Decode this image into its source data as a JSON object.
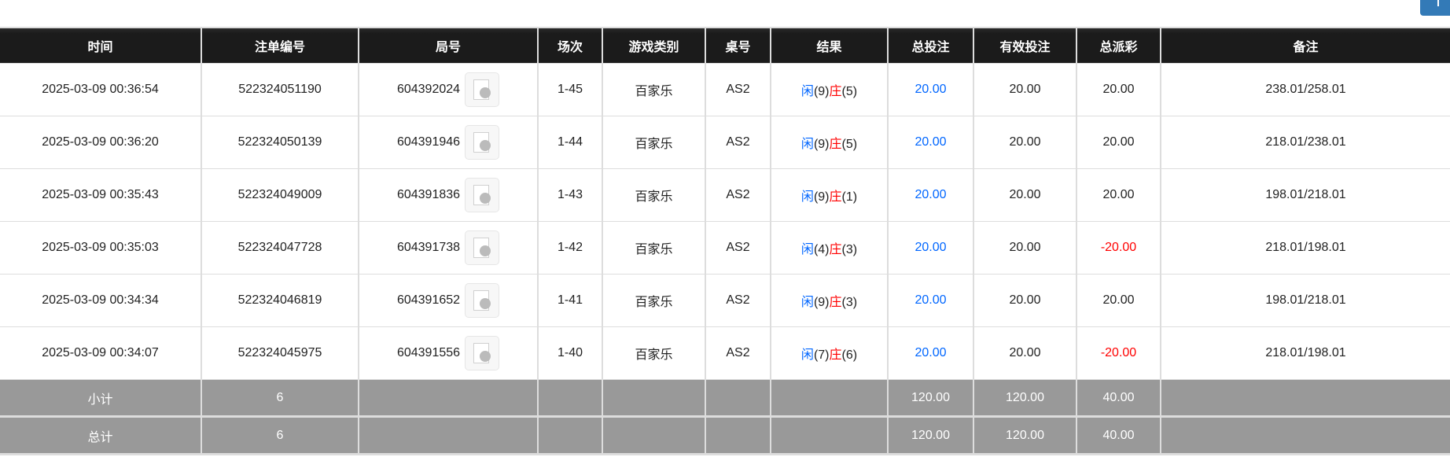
{
  "headers": [
    "时间",
    "注单编号",
    "局号",
    "场次",
    "游戏类别",
    "桌号",
    "结果",
    "总投注",
    "有效投注",
    "总派彩",
    "备注"
  ],
  "rows": [
    {
      "time": "2025-03-09 00:36:54",
      "bet_id": "522324051190",
      "round": "604392024",
      "session": "1-45",
      "game": "百家乐",
      "table": "AS2",
      "player_label": "闲",
      "player_score": "(9)",
      "banker_label": "庄",
      "banker_score": "(5)",
      "total_bet": "20.00",
      "valid_bet": "20.00",
      "payout": "20.00",
      "payout_negative": false,
      "note": "238.01/258.01"
    },
    {
      "time": "2025-03-09 00:36:20",
      "bet_id": "522324050139",
      "round": "604391946",
      "session": "1-44",
      "game": "百家乐",
      "table": "AS2",
      "player_label": "闲",
      "player_score": "(9)",
      "banker_label": "庄",
      "banker_score": "(5)",
      "total_bet": "20.00",
      "valid_bet": "20.00",
      "payout": "20.00",
      "payout_negative": false,
      "note": "218.01/238.01"
    },
    {
      "time": "2025-03-09 00:35:43",
      "bet_id": "522324049009",
      "round": "604391836",
      "session": "1-43",
      "game": "百家乐",
      "table": "AS2",
      "player_label": "闲",
      "player_score": "(9)",
      "banker_label": "庄",
      "banker_score": "(1)",
      "total_bet": "20.00",
      "valid_bet": "20.00",
      "payout": "20.00",
      "payout_negative": false,
      "note": "198.01/218.01"
    },
    {
      "time": "2025-03-09 00:35:03",
      "bet_id": "522324047728",
      "round": "604391738",
      "session": "1-42",
      "game": "百家乐",
      "table": "AS2",
      "player_label": "闲",
      "player_score": "(4)",
      "banker_label": "庄",
      "banker_score": "(3)",
      "total_bet": "20.00",
      "valid_bet": "20.00",
      "payout": "-20.00",
      "payout_negative": true,
      "note": "218.01/198.01"
    },
    {
      "time": "2025-03-09 00:34:34",
      "bet_id": "522324046819",
      "round": "604391652",
      "session": "1-41",
      "game": "百家乐",
      "table": "AS2",
      "player_label": "闲",
      "player_score": "(9)",
      "banker_label": "庄",
      "banker_score": "(3)",
      "total_bet": "20.00",
      "valid_bet": "20.00",
      "payout": "20.00",
      "payout_negative": false,
      "note": "198.01/218.01"
    },
    {
      "time": "2025-03-09 00:34:07",
      "bet_id": "522324045975",
      "round": "604391556",
      "session": "1-40",
      "game": "百家乐",
      "table": "AS2",
      "player_label": "闲",
      "player_score": "(7)",
      "banker_label": "庄",
      "banker_score": "(6)",
      "total_bet": "20.00",
      "valid_bet": "20.00",
      "payout": "-20.00",
      "payout_negative": true,
      "note": "218.01/198.01"
    }
  ],
  "subtotal": {
    "label": "小计",
    "count": "6",
    "total_bet": "120.00",
    "valid_bet": "120.00",
    "payout": "40.00"
  },
  "total": {
    "label": "总计",
    "count": "6",
    "total_bet": "120.00",
    "valid_bet": "120.00",
    "payout": "40.00"
  },
  "colors": {
    "header_bg": "#1b1b1b",
    "summary_bg": "#999999",
    "blue": "#0066ff",
    "red": "#ff0000",
    "button": "#337ab7"
  },
  "icons": {
    "replay": "video-file-icon"
  }
}
